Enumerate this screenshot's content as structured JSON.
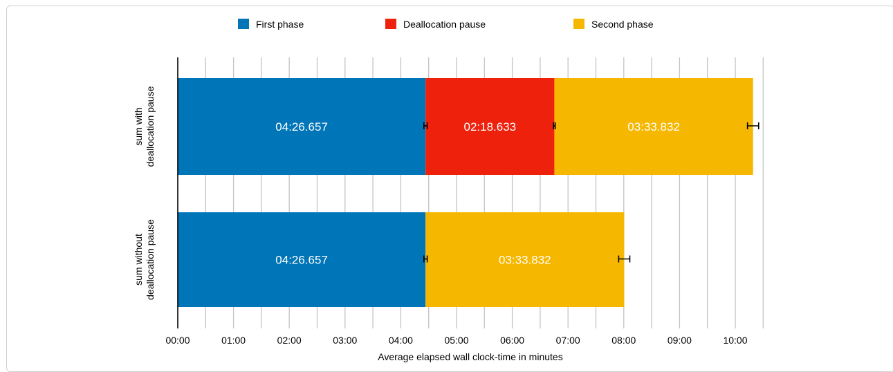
{
  "chart_data": {
    "type": "bar",
    "orientation": "horizontal",
    "stacked": true,
    "title": "",
    "xlabel": "Average elapsed wall clock-time in minutes",
    "ylabel": "",
    "xlim": [
      0,
      10.5
    ],
    "x_unit": "minutes",
    "xticks": [
      0,
      1,
      2,
      3,
      4,
      5,
      6,
      7,
      8,
      9,
      10
    ],
    "xtick_labels": [
      "00:00",
      "01:00",
      "02:00",
      "03:00",
      "04:00",
      "05:00",
      "06:00",
      "07:00",
      "08:00",
      "09:00",
      "10:00"
    ],
    "grid": "vertical, every 0.5 minutes",
    "legend_position": "top",
    "categories": [
      [
        "sum with",
        "deallocation pause"
      ],
      [
        "sum without",
        "deallocation pause"
      ]
    ],
    "series": [
      {
        "name": "First phase",
        "color": "#0075b8",
        "values": [
          4.44428,
          4.44428
        ],
        "labels": [
          "04:26.657",
          "04:26.657"
        ],
        "error": [
          0.03,
          0.03
        ]
      },
      {
        "name": "Deallocation pause",
        "color": "#ee220c",
        "values": [
          2.31055,
          null
        ],
        "labels": [
          "02:18.633",
          ""
        ],
        "error": [
          0.015,
          null
        ]
      },
      {
        "name": "Second phase",
        "color": "#f6b700",
        "values": [
          3.56387,
          3.56387
        ],
        "labels": [
          "03:33.832",
          "03:33.832"
        ],
        "error": [
          0.1,
          0.1
        ]
      }
    ]
  }
}
